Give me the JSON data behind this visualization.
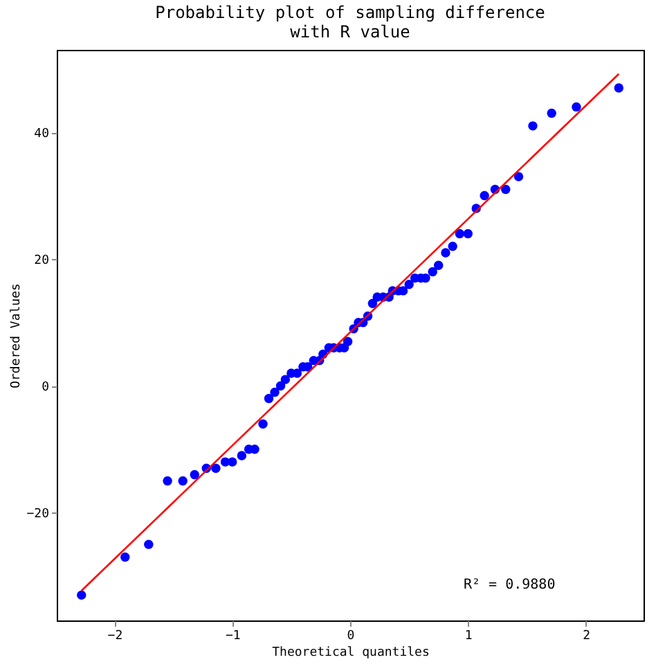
{
  "chart_data": {
    "type": "scatter",
    "title": "Probability plot of sampling difference\nwith R value",
    "xlabel": "Theoretical quantiles",
    "ylabel": "Ordered Values",
    "xlim": [
      -2.49,
      2.49
    ],
    "ylim": [
      -37,
      53
    ],
    "xticks": [
      -2,
      -1,
      0,
      1,
      2
    ],
    "yticks": [
      -20,
      0,
      20,
      40
    ],
    "grid": false,
    "annotations": [
      "R² = 0.9880"
    ],
    "series": [
      {
        "marker": "circle",
        "color": "#0000ff",
        "x": [
          -2.28,
          -1.91,
          -1.71,
          -1.55,
          -1.42,
          -1.32,
          -1.22,
          -1.14,
          -1.06,
          -1.0,
          -0.92,
          -0.86,
          -0.81,
          -0.74,
          -0.69,
          -0.64,
          -0.59,
          -0.55,
          -0.5,
          -0.45,
          -0.4,
          -0.36,
          -0.31,
          -0.26,
          -0.23,
          -0.18,
          -0.14,
          -0.09,
          -0.05,
          -0.02,
          0.03,
          0.07,
          0.11,
          0.15,
          0.19,
          0.23,
          0.28,
          0.33,
          0.36,
          0.41,
          0.45,
          0.5,
          0.55,
          0.6,
          0.64,
          0.7,
          0.75,
          0.81,
          0.87,
          0.93,
          1.0,
          1.07,
          1.14,
          1.23,
          1.32,
          1.43,
          1.55,
          1.71,
          1.92,
          2.28
        ],
        "values": [
          -33,
          -27,
          -25,
          -15,
          -15,
          -14,
          -13,
          -13,
          -12,
          -12,
          -11,
          -10,
          -10,
          -6,
          -2,
          -1,
          0,
          1,
          2,
          2,
          3,
          3,
          4,
          4,
          5,
          6,
          6,
          6,
          6,
          7,
          9,
          10,
          10,
          11,
          13,
          14,
          14,
          14,
          15,
          15,
          15,
          16,
          17,
          17,
          17,
          18,
          19,
          21,
          22,
          24,
          24,
          28,
          30,
          31,
          31,
          33,
          41,
          43,
          44,
          47
        ]
      },
      {
        "type": "line",
        "marker": "none",
        "color": "#ff0000",
        "line_style": "solid",
        "x": [
          -2.28,
          2.28
        ],
        "values": [
          -32.3,
          49.2
        ]
      }
    ]
  }
}
